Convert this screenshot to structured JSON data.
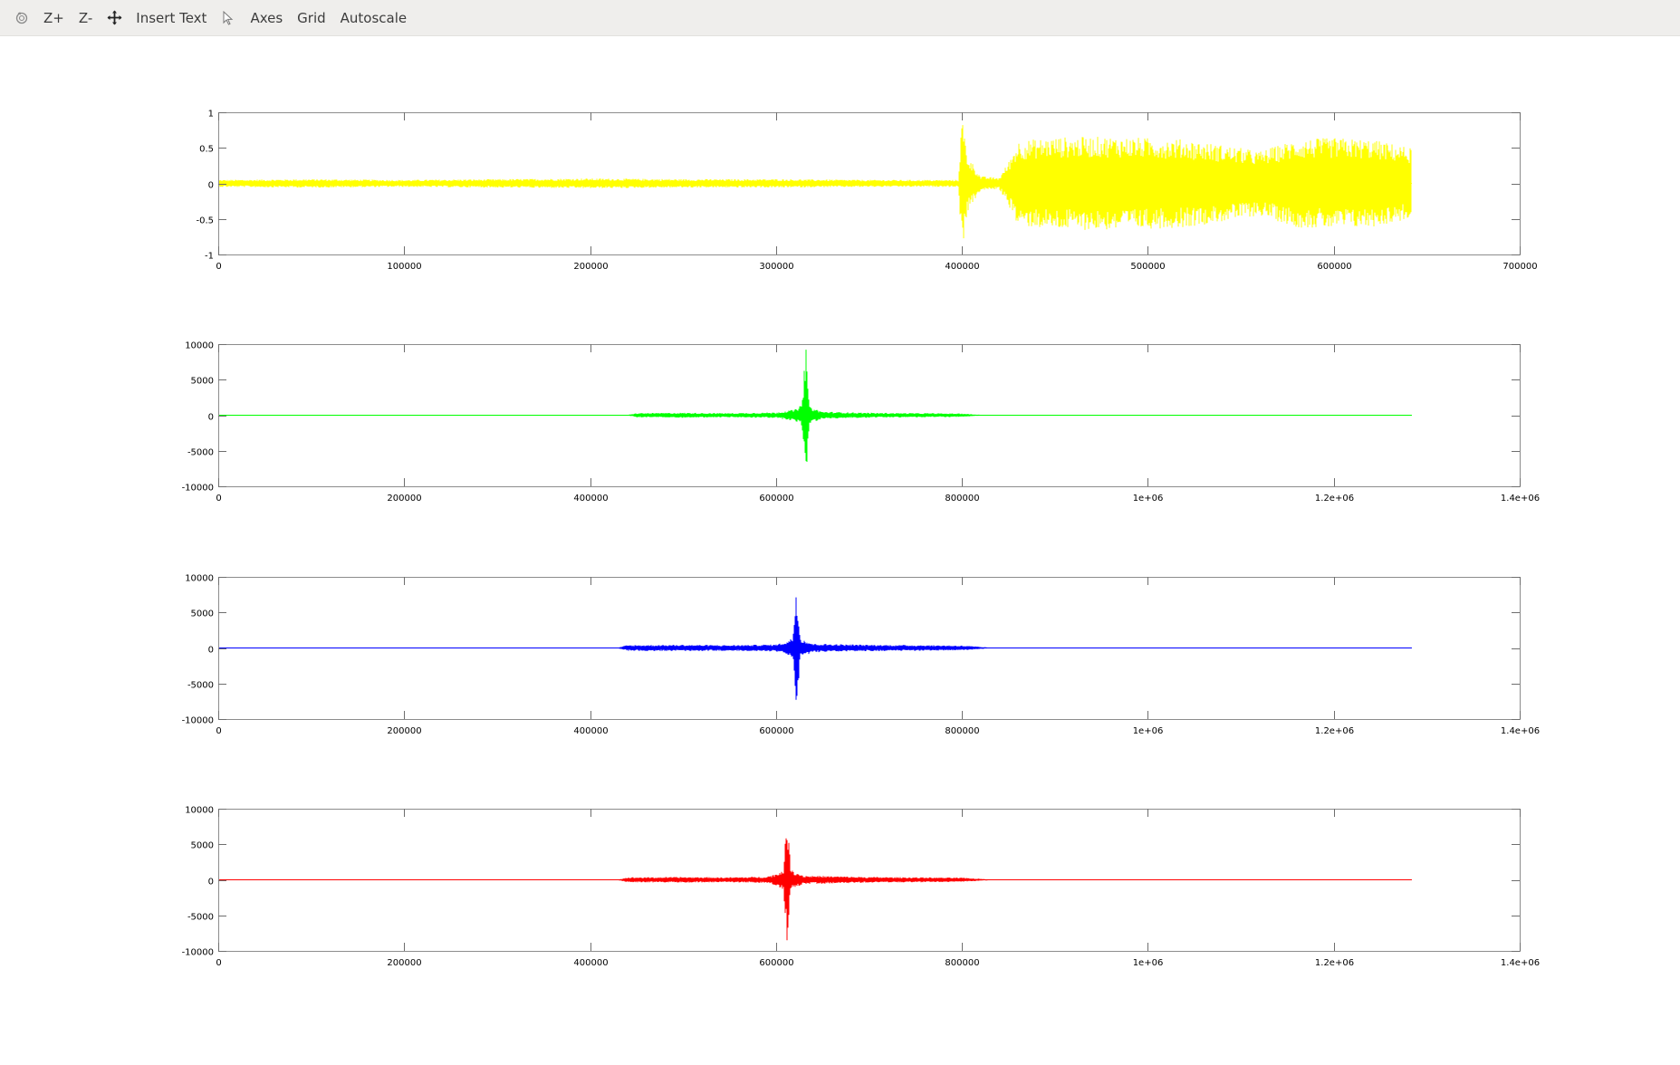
{
  "toolbar": {
    "items": [
      {
        "type": "icon",
        "icon": "rotate-icon"
      },
      {
        "type": "text",
        "label": "Z+"
      },
      {
        "type": "text",
        "label": "Z-"
      },
      {
        "type": "icon",
        "icon": "pan-icon"
      },
      {
        "type": "text",
        "label": "Insert Text"
      },
      {
        "type": "icon",
        "icon": "pointer-icon"
      },
      {
        "type": "text",
        "label": "Axes"
      },
      {
        "type": "text",
        "label": "Grid"
      },
      {
        "type": "text",
        "label": "Autoscale"
      }
    ]
  },
  "chart_data": [
    {
      "type": "line",
      "title": "",
      "xlabel": "",
      "ylabel": "",
      "color": "#ffff00",
      "xlim": [
        0,
        700000
      ],
      "ylim": [
        -1,
        1
      ],
      "xticks": [
        0,
        100000,
        200000,
        300000,
        400000,
        500000,
        600000,
        700000
      ],
      "xtick_labels": [
        "0",
        "100000",
        "200000",
        "300000",
        "400000",
        "500000",
        "600000",
        "700000"
      ],
      "yticks": [
        1,
        0.5,
        0,
        -0.5,
        -1
      ],
      "ytick_labels": [
        "1",
        "0.5",
        "0",
        "-0.5",
        "-1"
      ],
      "grid": false,
      "legend": "none",
      "series": [
        {
          "x_end": 642000,
          "envelope_x": [
            0,
            50000,
            100000,
            150000,
            200000,
            250000,
            300000,
            350000,
            398000,
            400000,
            403000,
            410000,
            420000,
            425000,
            430000,
            450000,
            480000,
            500000,
            520000,
            550000,
            560000,
            580000,
            600000,
            620000,
            642000
          ],
          "envelope_amp": [
            0.05,
            0.06,
            0.05,
            0.06,
            0.07,
            0.06,
            0.06,
            0.05,
            0.05,
            0.95,
            0.4,
            0.1,
            0.08,
            0.3,
            0.6,
            0.65,
            0.66,
            0.64,
            0.62,
            0.5,
            0.45,
            0.62,
            0.64,
            0.62,
            0.5
          ]
        }
      ]
    },
    {
      "type": "line",
      "title": "",
      "xlabel": "",
      "ylabel": "",
      "color": "#00ff00",
      "xlim": [
        0,
        1400000
      ],
      "ylim": [
        -10000,
        10000
      ],
      "xticks": [
        0,
        200000,
        400000,
        600000,
        800000,
        1000000,
        1200000,
        1400000
      ],
      "xtick_labels": [
        "0",
        "200000",
        "400000",
        "600000",
        "800000",
        "1e+06",
        "1.2e+06",
        "1.4e+06"
      ],
      "yticks": [
        10000,
        5000,
        0,
        -5000,
        -10000
      ],
      "ytick_labels": [
        "10000",
        "5000",
        "0",
        "-5000",
        "-10000"
      ],
      "grid": false,
      "legend": "none",
      "series": [
        {
          "x_end": 1284000,
          "envelope_x": [
            0,
            440000,
            450000,
            500000,
            550000,
            600000,
            620000,
            628000,
            632000,
            636000,
            650000,
            700000,
            750000,
            800000,
            820000,
            1284000
          ],
          "envelope_amp": [
            30,
            40,
            300,
            350,
            300,
            400,
            800,
            1500,
            10000,
            1200,
            500,
            350,
            300,
            250,
            60,
            30
          ]
        }
      ]
    },
    {
      "type": "line",
      "title": "",
      "xlabel": "",
      "ylabel": "",
      "color": "#0000ff",
      "xlim": [
        0,
        1400000
      ],
      "ylim": [
        -10000,
        10000
      ],
      "xticks": [
        0,
        200000,
        400000,
        600000,
        800000,
        1000000,
        1200000,
        1400000
      ],
      "xtick_labels": [
        "0",
        "200000",
        "400000",
        "600000",
        "800000",
        "1e+06",
        "1.2e+06",
        "1.4e+06"
      ],
      "yticks": [
        10000,
        5000,
        0,
        -5000,
        -10000
      ],
      "ytick_labels": [
        "10000",
        "5000",
        "0",
        "-5000",
        "-10000"
      ],
      "grid": false,
      "legend": "none",
      "series": [
        {
          "x_end": 1284000,
          "envelope_x": [
            0,
            430000,
            440000,
            500000,
            550000,
            600000,
            612000,
            618000,
            622000,
            626000,
            640000,
            700000,
            760000,
            800000,
            830000,
            1284000
          ],
          "envelope_amp": [
            30,
            40,
            400,
            450,
            400,
            500,
            900,
            1500,
            9300,
            1400,
            600,
            450,
            400,
            350,
            60,
            30
          ]
        }
      ]
    },
    {
      "type": "line",
      "title": "",
      "xlabel": "",
      "ylabel": "",
      "color": "#ff0000",
      "xlim": [
        0,
        1400000
      ],
      "ylim": [
        -10000,
        10000
      ],
      "xticks": [
        0,
        200000,
        400000,
        600000,
        800000,
        1000000,
        1200000,
        1400000
      ],
      "xtick_labels": [
        "0",
        "200000",
        "400000",
        "600000",
        "800000",
        "1e+06",
        "1.2e+06",
        "1.4e+06"
      ],
      "yticks": [
        10000,
        5000,
        0,
        -5000,
        -10000
      ],
      "ytick_labels": [
        "10000",
        "5000",
        "0",
        "-5000",
        "-10000"
      ],
      "grid": false,
      "legend": "none",
      "series": [
        {
          "x_end": 1284000,
          "envelope_x": [
            0,
            430000,
            440000,
            500000,
            550000,
            590000,
            602000,
            608000,
            612000,
            616000,
            630000,
            700000,
            760000,
            800000,
            830000,
            1284000
          ],
          "envelope_amp": [
            30,
            40,
            350,
            400,
            350,
            450,
            900,
            1600,
            9000,
            1400,
            600,
            400,
            350,
            300,
            60,
            30
          ]
        }
      ]
    }
  ]
}
